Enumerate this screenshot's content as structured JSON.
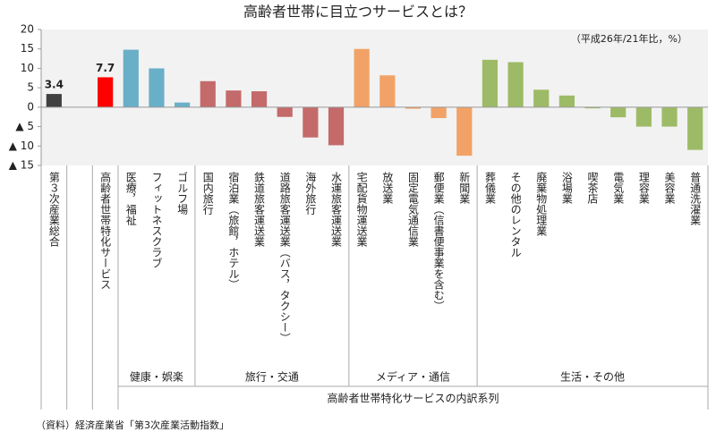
{
  "chart_data": {
    "type": "bar",
    "title": "高齢者世帯に目立つサービスとは？",
    "annotation": "（平成26年/21年比，%）",
    "source": "（資料）経済産業省「第3次産業活動指数」",
    "categories": [
      "第３次産業総合",
      null,
      "高齢者世帯特化サービス",
      "医療，福祉",
      "フィットネスクラブ",
      "ゴルフ場",
      "国内旅行",
      "宿泊業（旅館，ホテル）",
      "鉄道旅客運送業",
      "道路旅客運送業（バス，タクシー）",
      "海外旅行",
      "水運旅客運送業",
      "宅配貨物運送業",
      "放送業",
      "固定電気通信業",
      "郵便業（信書便事業を含む）",
      "新聞業",
      "葬儀業",
      "その他のレンタル",
      "廃棄物処理業",
      "浴場業",
      "喫茶店",
      "電気業",
      "理容業",
      "美容業",
      "普通洗濯業"
    ],
    "values": [
      3.4,
      null,
      7.7,
      14.8,
      10.0,
      1.2,
      6.7,
      4.3,
      4.1,
      -2.5,
      -7.8,
      -9.8,
      15.0,
      8.2,
      -0.4,
      -2.8,
      -12.5,
      12.2,
      11.6,
      4.5,
      3.0,
      -0.3,
      -2.6,
      -5.0,
      -5.0,
      -11.0
    ],
    "value_labels": [
      "3.4",
      null,
      "7.7",
      null,
      null,
      null,
      null,
      null,
      null,
      null,
      null,
      null,
      null,
      null,
      null,
      null,
      null,
      null,
      null,
      null,
      null,
      null,
      null,
      null,
      null,
      null
    ],
    "colors": [
      "#404040",
      null,
      "#ff0000",
      "#6aafc8",
      "#6aafc8",
      "#6aafc8",
      "#c46a6a",
      "#c46a6a",
      "#c46a6a",
      "#c46a6a",
      "#c46a6a",
      "#c46a6a",
      "#f2a266",
      "#f2a266",
      "#f2a266",
      "#f2a266",
      "#f2a266",
      "#9dbb66",
      "#9dbb66",
      "#9dbb66",
      "#9dbb66",
      "#9dbb66",
      "#9dbb66",
      "#9dbb66",
      "#9dbb66",
      "#9dbb66"
    ],
    "groups": [
      {
        "label": "健康・娯楽",
        "from": 3,
        "to": 5
      },
      {
        "label": "旅行・交通",
        "from": 6,
        "to": 11
      },
      {
        "label": "メディア・通信",
        "from": 12,
        "to": 16
      },
      {
        "label": "生活・その他",
        "from": 17,
        "to": 25
      }
    ],
    "supergroup": {
      "label": "高齢者世帯特化サービスの内訳系列",
      "from": 3,
      "to": 25
    },
    "ylim": [
      -15,
      20
    ],
    "yticks": [
      20,
      15,
      10,
      5,
      0,
      {
        "value": -5,
        "label": "▲ 5"
      },
      {
        "value": -10,
        "label": "▲ 10"
      },
      {
        "value": -15,
        "label": "▲ 15"
      }
    ],
    "grid": false
  }
}
